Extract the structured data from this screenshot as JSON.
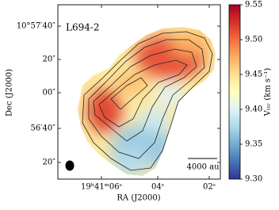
{
  "chart_data": {
    "type": "image",
    "annotation": "L694-2",
    "scale_bar_label": "4000 au",
    "xlabel": "RA (J2000)",
    "ylabel": "Dec (J2000)",
    "xtick_labels": [
      "19ʰ41ᵐ06ˢ",
      "04ˢ",
      "02ˢ"
    ],
    "ytick_labels": [
      "10°57′40″",
      "20″",
      "00″",
      "56′40″",
      "20″"
    ],
    "colorbar": {
      "label": "Vₗₛᵣ (km s⁻¹)",
      "clim": [
        9.3,
        9.55
      ],
      "ticks": [
        {
          "value": 9.3,
          "label": "9.30"
        },
        9.35,
        {
          "value": 9.4,
          "label": "9.40"
        },
        9.45,
        {
          "value": 9.5,
          "label": "9.50"
        },
        9.55
      ],
      "colors": [
        "#313695",
        "#4575b4",
        "#74add1",
        "#abd9e9",
        "#e0f3f8",
        "#ffffbf",
        "#fee090",
        "#fdae61",
        "#f46d43",
        "#d73027",
        "#a50026"
      ]
    }
  }
}
